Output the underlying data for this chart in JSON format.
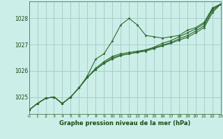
{
  "title": "Graphe pression niveau de la mer (hPa)",
  "bg_color": "#cceee8",
  "grid_color": "#aacccc",
  "line_color": "#2d6a2d",
  "marker_color": "#2d6a2d",
  "xmin": 0,
  "xmax": 23,
  "ymin": 1024.35,
  "ymax": 1028.65,
  "yticks": [
    1025,
    1026,
    1027,
    1028
  ],
  "xticks": [
    0,
    1,
    2,
    3,
    4,
    5,
    6,
    7,
    8,
    9,
    10,
    11,
    12,
    13,
    14,
    15,
    16,
    17,
    18,
    19,
    20,
    21,
    22,
    23
  ],
  "series": [
    [
      1024.5,
      1024.75,
      1024.95,
      1025.0,
      1024.75,
      1025.0,
      1025.35,
      1025.8,
      1026.45,
      1026.65,
      1027.15,
      1027.75,
      1028.0,
      1027.75,
      1027.35,
      1027.3,
      1027.25,
      1027.3,
      1027.35,
      1027.55,
      1027.65,
      1027.85,
      1028.4,
      1028.55
    ],
    [
      1024.5,
      1024.75,
      1024.95,
      1025.0,
      1024.75,
      1025.0,
      1025.35,
      1025.75,
      1026.1,
      1026.35,
      1026.55,
      1026.65,
      1026.7,
      1026.75,
      1026.8,
      1026.9,
      1027.05,
      1027.15,
      1027.3,
      1027.45,
      1027.6,
      1027.8,
      1028.35,
      1028.55
    ],
    [
      1024.5,
      1024.75,
      1024.95,
      1025.0,
      1024.75,
      1025.0,
      1025.35,
      1025.75,
      1026.05,
      1026.3,
      1026.5,
      1026.6,
      1026.65,
      1026.72,
      1026.78,
      1026.88,
      1026.98,
      1027.08,
      1027.22,
      1027.35,
      1027.52,
      1027.72,
      1028.3,
      1028.55
    ],
    [
      1024.5,
      1024.75,
      1024.95,
      1025.0,
      1024.75,
      1025.0,
      1025.35,
      1025.75,
      1026.05,
      1026.28,
      1026.45,
      1026.58,
      1026.65,
      1026.7,
      1026.75,
      1026.85,
      1026.95,
      1027.05,
      1027.17,
      1027.28,
      1027.45,
      1027.65,
      1028.22,
      1028.55
    ]
  ]
}
